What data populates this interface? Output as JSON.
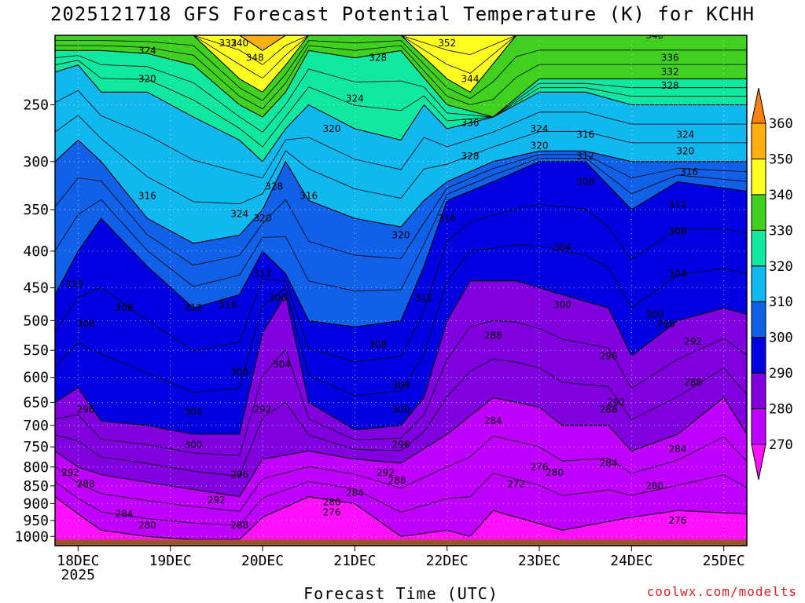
{
  "chart_data": {
    "type": "contour",
    "title": "2025121718 GFS Forecast Potential Temperature (K) for KCHH",
    "xlabel": "Forecast Time (UTC)",
    "ylabel": "",
    "credit": "coolwx.com/modelts",
    "x_ticks": [
      {
        "label": "18DEC",
        "sublabel": "2025",
        "hours": 6
      },
      {
        "label": "19DEC",
        "sublabel": "",
        "hours": 30
      },
      {
        "label": "20DEC",
        "sublabel": "",
        "hours": 54
      },
      {
        "label": "21DEC",
        "sublabel": "",
        "hours": 78
      },
      {
        "label": "22DEC",
        "sublabel": "",
        "hours": 102
      },
      {
        "label": "23DEC",
        "sublabel": "",
        "hours": 126
      },
      {
        "label": "24DEC",
        "sublabel": "",
        "hours": 150
      },
      {
        "label": "25DEC",
        "sublabel": "",
        "hours": 174
      }
    ],
    "x_range_hours": [
      0,
      180
    ],
    "y_ticks_hpa": [
      1000,
      950,
      900,
      850,
      800,
      750,
      700,
      650,
      600,
      550,
      500,
      450,
      400,
      350,
      300,
      250
    ],
    "y_range_hpa": [
      1030,
      200
    ],
    "colorbar": {
      "levels": [
        270,
        280,
        290,
        300,
        310,
        320,
        330,
        340,
        350,
        360
      ],
      "colors": [
        "#ff10ff",
        "#c000ff",
        "#8000e0",
        "#0000e0",
        "#1060e8",
        "#10b8f0",
        "#10e8a0",
        "#40d020",
        "#ffff20",
        "#ffb010",
        "#ff8010"
      ],
      "extend": "both"
    },
    "boundaries": [
      {
        "level": 280,
        "points": [
          [
            0,
            880
          ],
          [
            6,
            930
          ],
          [
            12,
            980
          ],
          [
            24,
            1000
          ],
          [
            36,
            1010
          ],
          [
            48,
            1010
          ],
          [
            54,
            940
          ],
          [
            66,
            880
          ],
          [
            78,
            900
          ],
          [
            90,
            1000
          ],
          [
            102,
            980
          ],
          [
            108,
            1000
          ],
          [
            114,
            920
          ],
          [
            132,
            980
          ],
          [
            150,
            940
          ],
          [
            162,
            920
          ],
          [
            180,
            930
          ]
        ]
      },
      {
        "level": 290,
        "points": [
          [
            0,
            760
          ],
          [
            6,
            800
          ],
          [
            12,
            820
          ],
          [
            24,
            840
          ],
          [
            36,
            860
          ],
          [
            48,
            880
          ],
          [
            54,
            780
          ],
          [
            66,
            760
          ],
          [
            78,
            780
          ],
          [
            90,
            790
          ],
          [
            102,
            720
          ],
          [
            114,
            640
          ],
          [
            126,
            660
          ],
          [
            132,
            700
          ],
          [
            144,
            700
          ],
          [
            150,
            760
          ],
          [
            162,
            720
          ],
          [
            174,
            640
          ],
          [
            180,
            720
          ]
        ]
      },
      {
        "level": 300,
        "points": [
          [
            0,
            650
          ],
          [
            6,
            620
          ],
          [
            12,
            690
          ],
          [
            24,
            700
          ],
          [
            36,
            720
          ],
          [
            48,
            720
          ],
          [
            54,
            520
          ],
          [
            60,
            460
          ],
          [
            66,
            650
          ],
          [
            78,
            710
          ],
          [
            90,
            700
          ],
          [
            96,
            640
          ],
          [
            102,
            500
          ],
          [
            108,
            440
          ],
          [
            120,
            440
          ],
          [
            132,
            460
          ],
          [
            144,
            480
          ],
          [
            150,
            560
          ],
          [
            162,
            500
          ],
          [
            174,
            480
          ],
          [
            180,
            490
          ]
        ]
      },
      {
        "level": 310,
        "points": [
          [
            0,
            460
          ],
          [
            6,
            400
          ],
          [
            12,
            360
          ],
          [
            24,
            420
          ],
          [
            36,
            480
          ],
          [
            48,
            460
          ],
          [
            54,
            400
          ],
          [
            60,
            430
          ],
          [
            66,
            500
          ],
          [
            78,
            510
          ],
          [
            90,
            500
          ],
          [
            96,
            420
          ],
          [
            102,
            340
          ],
          [
            114,
            320
          ],
          [
            126,
            300
          ],
          [
            138,
            300
          ],
          [
            150,
            350
          ],
          [
            162,
            320
          ],
          [
            180,
            330
          ]
        ]
      },
      {
        "level": 320,
        "points": [
          [
            0,
            300
          ],
          [
            6,
            280
          ],
          [
            12,
            300
          ],
          [
            24,
            360
          ],
          [
            36,
            390
          ],
          [
            48,
            380
          ],
          [
            54,
            350
          ],
          [
            60,
            300
          ],
          [
            66,
            340
          ],
          [
            78,
            360
          ],
          [
            90,
            370
          ],
          [
            96,
            340
          ],
          [
            102,
            320
          ],
          [
            114,
            300
          ],
          [
            126,
            290
          ],
          [
            138,
            290
          ],
          [
            150,
            300
          ],
          [
            162,
            300
          ],
          [
            180,
            300
          ]
        ]
      },
      {
        "level": 330,
        "points": [
          [
            0,
            225
          ],
          [
            6,
            220
          ],
          [
            12,
            240
          ],
          [
            24,
            240
          ],
          [
            36,
            260
          ],
          [
            48,
            280
          ],
          [
            54,
            300
          ],
          [
            60,
            270
          ],
          [
            66,
            250
          ],
          [
            78,
            270
          ],
          [
            90,
            280
          ],
          [
            96,
            250
          ],
          [
            102,
            270
          ],
          [
            114,
            260
          ],
          [
            126,
            240
          ],
          [
            138,
            240
          ],
          [
            150,
            250
          ],
          [
            162,
            250
          ],
          [
            180,
            250
          ]
        ]
      },
      {
        "level": 340,
        "points": [
          [
            0,
            210
          ],
          [
            12,
            210
          ],
          [
            24,
            212
          ],
          [
            36,
            220
          ],
          [
            48,
            250
          ],
          [
            54,
            260
          ],
          [
            60,
            240
          ],
          [
            66,
            210
          ],
          [
            78,
            215
          ],
          [
            90,
            210
          ],
          [
            102,
            250
          ],
          [
            114,
            260
          ],
          [
            126,
            230
          ],
          [
            138,
            230
          ],
          [
            150,
            230
          ],
          [
            162,
            230
          ],
          [
            180,
            230
          ]
        ]
      },
      {
        "level": 350,
        "points": [
          [
            0,
            200
          ],
          [
            36,
            200
          ],
          [
            48,
            230
          ],
          [
            54,
            240
          ],
          [
            60,
            220
          ],
          [
            66,
            200
          ],
          [
            90,
            200
          ],
          [
            102,
            230
          ],
          [
            108,
            240
          ],
          [
            120,
            200
          ],
          [
            180,
            200
          ]
        ]
      },
      {
        "level": 360,
        "points": [
          [
            0,
            200
          ],
          [
            48,
            200
          ],
          [
            54,
            210
          ],
          [
            60,
            200
          ],
          [
            102,
            200
          ],
          [
            108,
            200
          ],
          [
            180,
            200
          ]
        ]
      }
    ],
    "contour_labels": [
      {
        "value": "324",
        "hours": 24,
        "hpa": 210
      },
      {
        "value": "332",
        "hours": 45,
        "hpa": 205
      },
      {
        "value": "340",
        "hours": 48,
        "hpa": 205
      },
      {
        "value": "348",
        "hours": 52,
        "hpa": 215
      },
      {
        "value": "328",
        "hours": 84,
        "hpa": 215
      },
      {
        "value": "352",
        "hours": 102,
        "hpa": 205
      },
      {
        "value": "340",
        "hours": 156,
        "hpa": 200
      },
      {
        "value": "336",
        "hours": 160,
        "hpa": 215
      },
      {
        "value": "332",
        "hours": 160,
        "hpa": 225
      },
      {
        "value": "328",
        "hours": 160,
        "hpa": 235
      },
      {
        "value": "320",
        "hours": 24,
        "hpa": 230
      },
      {
        "value": "324",
        "hours": 78,
        "hpa": 245
      },
      {
        "value": "344",
        "hours": 108,
        "hpa": 230
      },
      {
        "value": "320",
        "hours": 72,
        "hpa": 270
      },
      {
        "value": "336",
        "hours": 108,
        "hpa": 265
      },
      {
        "value": "324",
        "hours": 126,
        "hpa": 270
      },
      {
        "value": "316",
        "hours": 138,
        "hpa": 275
      },
      {
        "value": "324",
        "hours": 164,
        "hpa": 275
      },
      {
        "value": "320",
        "hours": 126,
        "hpa": 285
      },
      {
        "value": "328",
        "hours": 108,
        "hpa": 295
      },
      {
        "value": "312",
        "hours": 138,
        "hpa": 295
      },
      {
        "value": "320",
        "hours": 164,
        "hpa": 290
      },
      {
        "value": "316",
        "hours": 165,
        "hpa": 310
      },
      {
        "value": "328",
        "hours": 57,
        "hpa": 325
      },
      {
        "value": "308",
        "hours": 138,
        "hpa": 320
      },
      {
        "value": "316",
        "hours": 24,
        "hpa": 335
      },
      {
        "value": "316",
        "hours": 66,
        "hpa": 335
      },
      {
        "value": "312",
        "hours": 162,
        "hpa": 345
      },
      {
        "value": "324",
        "hours": 48,
        "hpa": 355
      },
      {
        "value": "320",
        "hours": 54,
        "hpa": 360
      },
      {
        "value": "316",
        "hours": 102,
        "hpa": 360
      },
      {
        "value": "308",
        "hours": 162,
        "hpa": 375
      },
      {
        "value": "320",
        "hours": 90,
        "hpa": 380
      },
      {
        "value": "304",
        "hours": 132,
        "hpa": 395
      },
      {
        "value": "312",
        "hours": 54,
        "hpa": 430
      },
      {
        "value": "304",
        "hours": 162,
        "hpa": 430
      },
      {
        "value": "312",
        "hours": 5,
        "hpa": 445
      },
      {
        "value": "300",
        "hours": 58,
        "hpa": 465
      },
      {
        "value": "312",
        "hours": 96,
        "hpa": 465
      },
      {
        "value": "308",
        "hours": 18,
        "hpa": 480
      },
      {
        "value": "312",
        "hours": 36,
        "hpa": 480
      },
      {
        "value": "316",
        "hours": 45,
        "hpa": 475
      },
      {
        "value": "300",
        "hours": 132,
        "hpa": 475
      },
      {
        "value": "300",
        "hours": 156,
        "hpa": 490
      },
      {
        "value": "296",
        "hours": 159,
        "hpa": 505
      },
      {
        "value": "308",
        "hours": 8,
        "hpa": 505
      },
      {
        "value": "288",
        "hours": 114,
        "hpa": 525
      },
      {
        "value": "292",
        "hours": 166,
        "hpa": 535
      },
      {
        "value": "308",
        "hours": 84,
        "hpa": 540
      },
      {
        "value": "296",
        "hours": 144,
        "hpa": 560
      },
      {
        "value": "304",
        "hours": 59,
        "hpa": 575
      },
      {
        "value": "308",
        "hours": 48,
        "hpa": 590
      },
      {
        "value": "288",
        "hours": 166,
        "hpa": 610
      },
      {
        "value": "304",
        "hours": 90,
        "hpa": 615
      },
      {
        "value": "292",
        "hours": 146,
        "hpa": 650
      },
      {
        "value": "288",
        "hours": 144,
        "hpa": 665
      },
      {
        "value": "296",
        "hours": 8,
        "hpa": 665
      },
      {
        "value": "304",
        "hours": 36,
        "hpa": 670
      },
      {
        "value": "300",
        "hours": 90,
        "hpa": 665
      },
      {
        "value": "292",
        "hours": 54,
        "hpa": 665
      },
      {
        "value": "284",
        "hours": 114,
        "hpa": 690
      },
      {
        "value": "300",
        "hours": 36,
        "hpa": 745
      },
      {
        "value": "296",
        "hours": 90,
        "hpa": 745
      },
      {
        "value": "284",
        "hours": 162,
        "hpa": 755
      },
      {
        "value": "276",
        "hours": 126,
        "hpa": 800
      },
      {
        "value": "284",
        "hours": 144,
        "hpa": 790
      },
      {
        "value": "292",
        "hours": 4,
        "hpa": 815
      },
      {
        "value": "292",
        "hours": 86,
        "hpa": 815
      },
      {
        "value": "296",
        "hours": 48,
        "hpa": 820
      },
      {
        "value": "280",
        "hours": 130,
        "hpa": 815
      },
      {
        "value": "288",
        "hours": 89,
        "hpa": 835
      },
      {
        "value": "288",
        "hours": 8,
        "hpa": 845
      },
      {
        "value": "272",
        "hours": 120,
        "hpa": 845
      },
      {
        "value": "280",
        "hours": 156,
        "hpa": 850
      },
      {
        "value": "284",
        "hours": 78,
        "hpa": 870
      },
      {
        "value": "292",
        "hours": 42,
        "hpa": 890
      },
      {
        "value": "280",
        "hours": 72,
        "hpa": 895
      },
      {
        "value": "284",
        "hours": 18,
        "hpa": 930
      },
      {
        "value": "276",
        "hours": 72,
        "hpa": 925
      },
      {
        "value": "276",
        "hours": 162,
        "hpa": 950
      },
      {
        "value": "280",
        "hours": 24,
        "hpa": 965
      },
      {
        "value": "288",
        "hours": 48,
        "hpa": 965
      }
    ]
  }
}
